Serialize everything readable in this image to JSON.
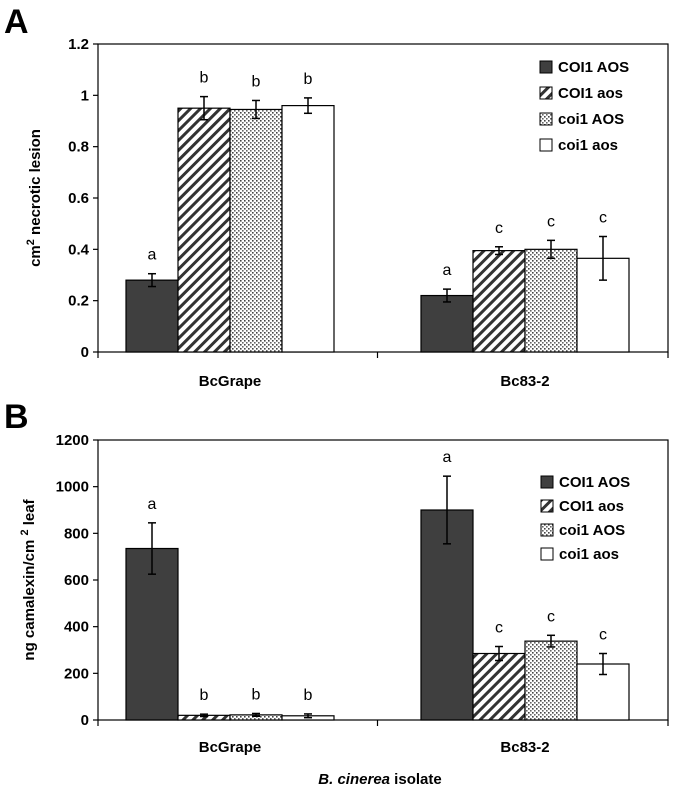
{
  "panels": {
    "a": {
      "letter": "A"
    },
    "b": {
      "letter": "B"
    }
  },
  "x_title": {
    "italic_part": "B. cinerea",
    "rest": " isolate"
  },
  "styles": {
    "COI1 AOS": {
      "fill": "#3f3f3f",
      "pattern": "solid"
    },
    "COI1 aos": {
      "fill": "#ffffff",
      "pattern": "diagonal-hatch"
    },
    "coi1 AOS": {
      "fill": "#ffffff",
      "pattern": "dots"
    },
    "coi1 aos": {
      "fill": "#ffffff",
      "pattern": "none"
    }
  },
  "chart_data": [
    {
      "type": "bar",
      "ylabel": "cm2 necrotic lesion",
      "ylim": [
        0,
        1.2
      ],
      "yticks": [
        "0",
        "0.2",
        "0.4",
        "0.6",
        "0.8",
        "1",
        "1.2"
      ],
      "ytick_values": [
        0,
        0.2,
        0.4,
        0.6,
        0.8,
        1.0,
        1.2
      ],
      "categories": [
        "BcGrape",
        "Bc83-2"
      ],
      "legend_position": "top-right",
      "series": [
        {
          "name": "COI1 AOS",
          "values": [
            0.28,
            0.22
          ],
          "errors": [
            0.025,
            0.025
          ],
          "letters": [
            "a",
            "a"
          ]
        },
        {
          "name": "COI1 aos",
          "values": [
            0.95,
            0.395
          ],
          "errors": [
            0.045,
            0.015
          ],
          "letters": [
            "b",
            "c"
          ]
        },
        {
          "name": "coi1 AOS",
          "values": [
            0.945,
            0.4
          ],
          "errors": [
            0.035,
            0.035
          ],
          "letters": [
            "b",
            "c"
          ]
        },
        {
          "name": "coi1 aos",
          "values": [
            0.96,
            0.365
          ],
          "errors": [
            0.03,
            0.085
          ],
          "letters": [
            "b",
            "c"
          ]
        }
      ]
    },
    {
      "type": "bar",
      "ylabel": "ng camalexin/cm 2 leaf",
      "ylim": [
        0,
        1200
      ],
      "yticks": [
        "0",
        "200",
        "400",
        "600",
        "800",
        "1000",
        "1200"
      ],
      "ytick_values": [
        0,
        200,
        400,
        600,
        800,
        1000,
        1200
      ],
      "categories": [
        "BcGrape",
        "Bc83-2"
      ],
      "legend_position": "top-right",
      "series": [
        {
          "name": "COI1 AOS",
          "values": [
            735,
            900
          ],
          "errors": [
            110,
            145
          ],
          "letters": [
            "a",
            "a"
          ]
        },
        {
          "name": "COI1 aos",
          "values": [
            20,
            285
          ],
          "errors": [
            5,
            30
          ],
          "letters": [
            "b",
            "c"
          ]
        },
        {
          "name": "coi1 AOS",
          "values": [
            22,
            338
          ],
          "errors": [
            6,
            25
          ],
          "letters": [
            "b",
            "c"
          ]
        },
        {
          "name": "coi1 aos",
          "values": [
            18,
            240
          ],
          "errors": [
            8,
            45
          ],
          "letters": [
            "b",
            "c"
          ]
        }
      ]
    }
  ]
}
